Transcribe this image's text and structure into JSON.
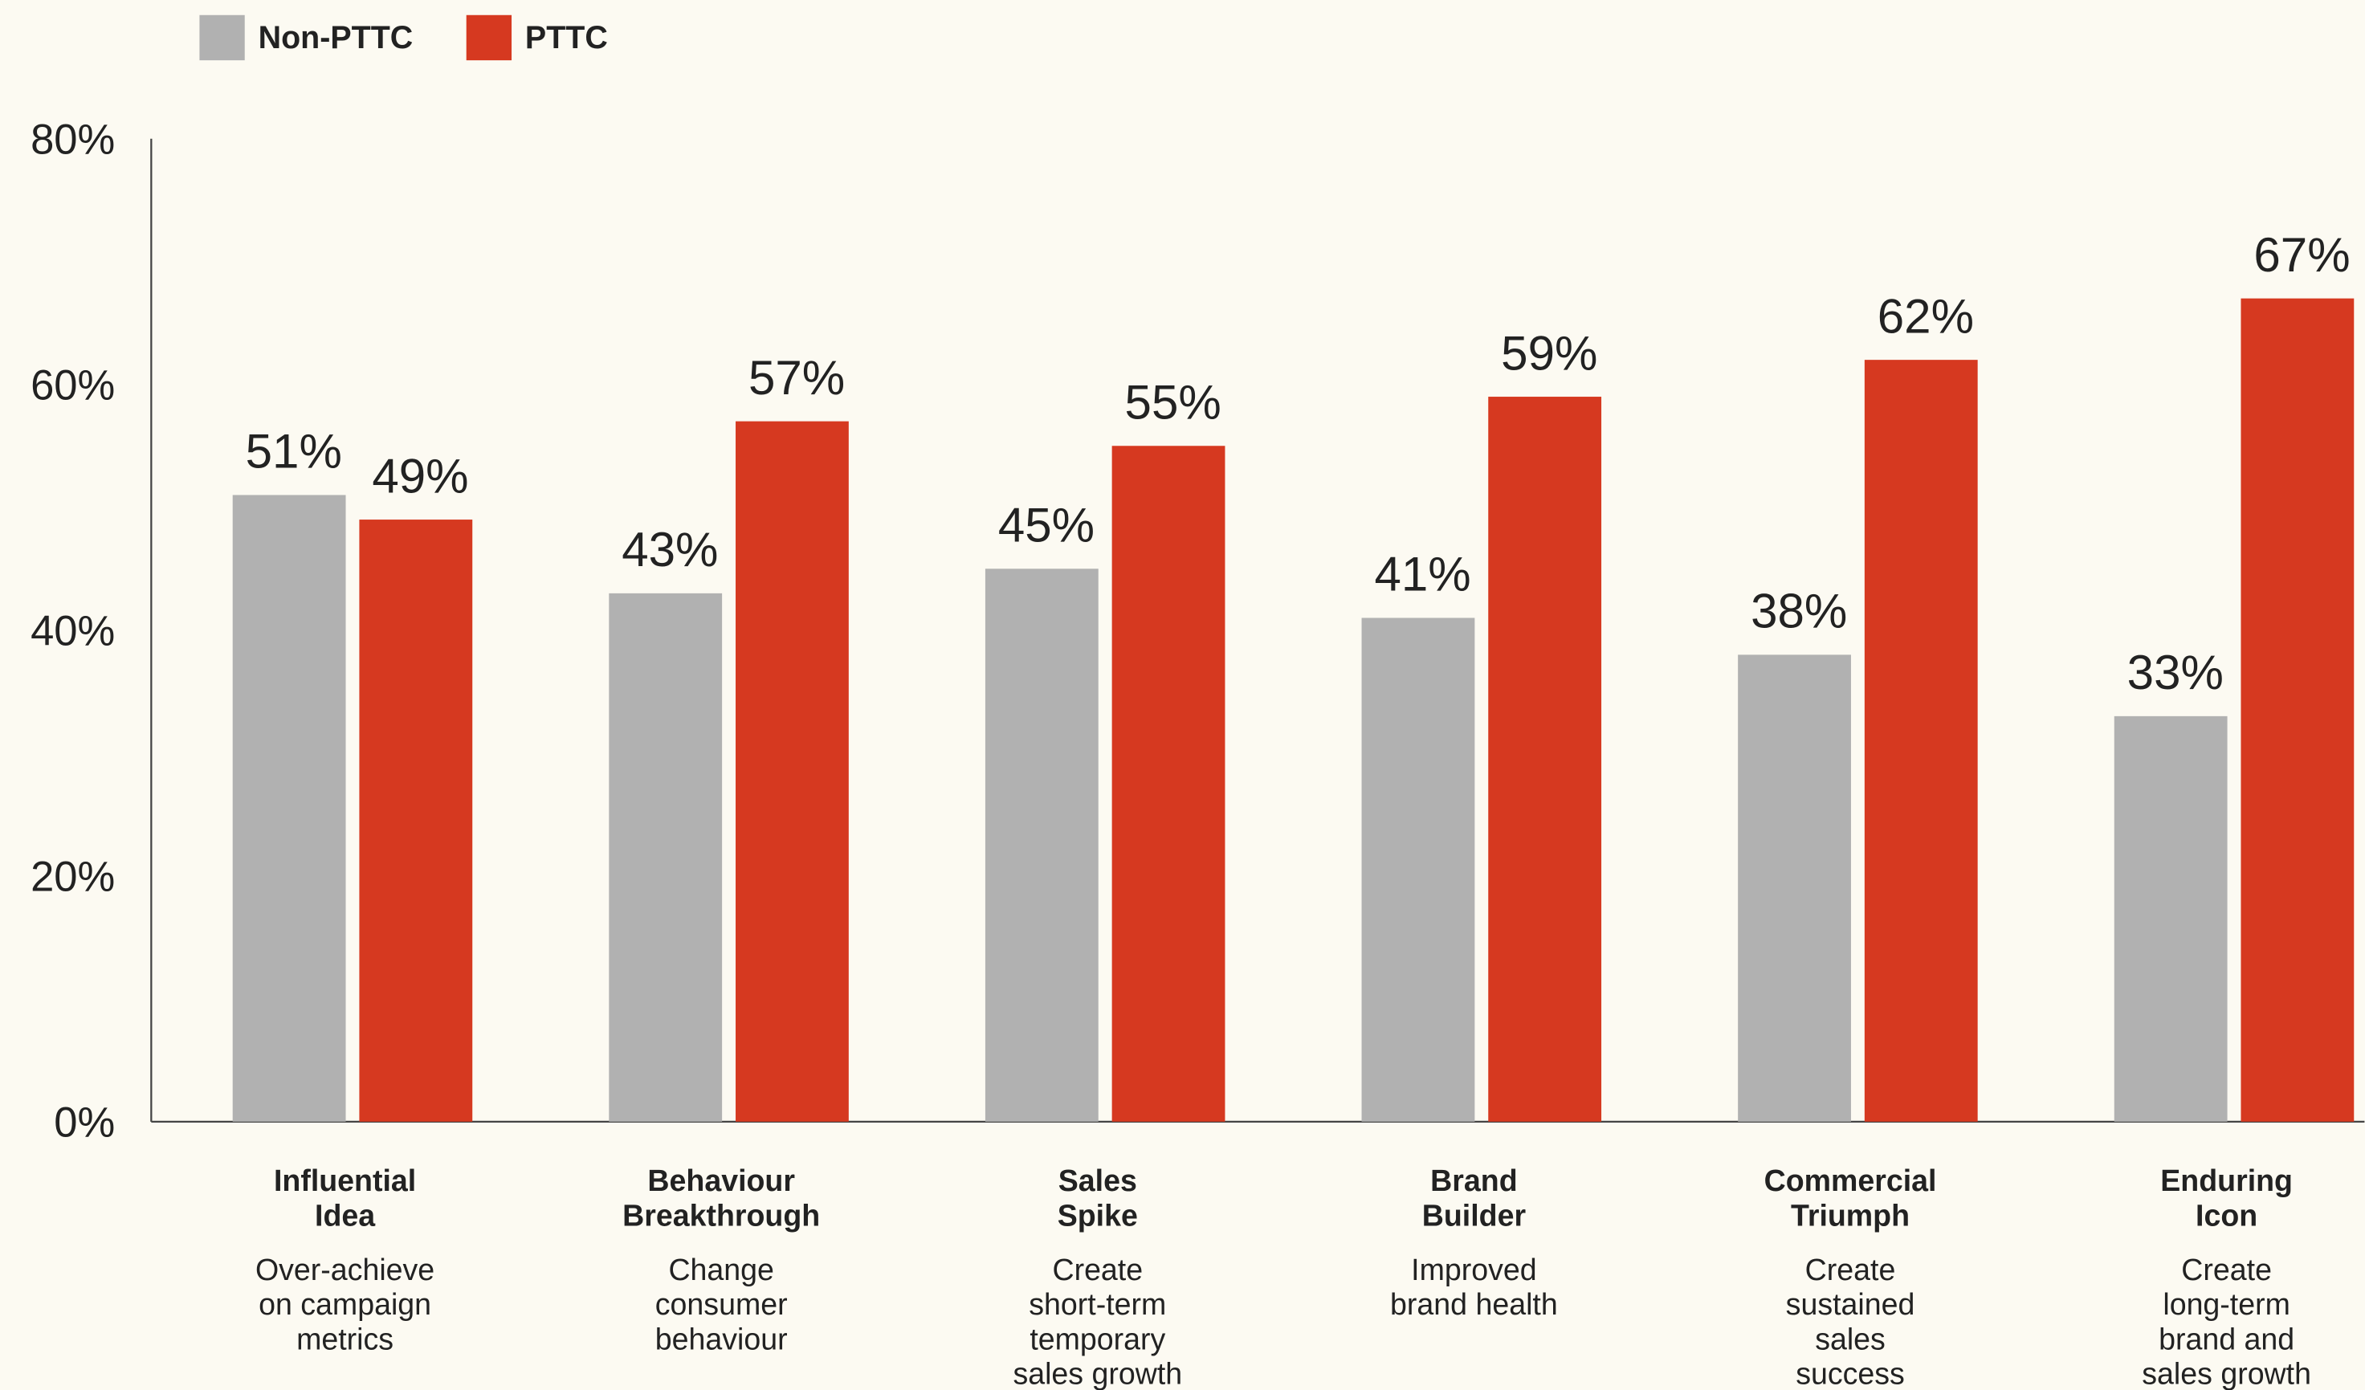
{
  "chart_data": {
    "type": "bar",
    "categories": [
      [
        "Influential",
        "Idea"
      ],
      [
        "Behaviour",
        "Breakthrough"
      ],
      [
        "Sales",
        "Spike"
      ],
      [
        "Brand",
        "Builder"
      ],
      [
        "Commercial",
        "Triumph"
      ],
      [
        "Enduring",
        "Icon"
      ]
    ],
    "descriptions": [
      [
        "Over-achieve",
        "on campaign",
        "metrics"
      ],
      [
        "Change",
        "consumer",
        "behaviour"
      ],
      [
        "Create",
        "short-term",
        "temporary",
        "sales growth"
      ],
      [
        "Improved",
        "brand health"
      ],
      [
        "Create",
        "sustained",
        "sales",
        "success"
      ],
      [
        "Create",
        "long-term",
        "brand and",
        "sales growth"
      ]
    ],
    "series": [
      {
        "name": "Non-PTTC",
        "color": "#b1b1b1",
        "values": [
          51,
          43,
          45,
          41,
          38,
          33
        ],
        "value_labels": [
          "51%",
          "43%",
          "45%",
          "41%",
          "38%",
          "33%"
        ]
      },
      {
        "name": "PTTC",
        "color": "#d63920",
        "values": [
          49,
          57,
          55,
          59,
          62,
          67
        ],
        "value_labels": [
          "49%",
          "57%",
          "55%",
          "59%",
          "62%",
          "67%"
        ]
      }
    ],
    "ylim": [
      0,
      80
    ],
    "yticks": [
      {
        "value": 0,
        "label": "0%"
      },
      {
        "value": 20,
        "label": "20%"
      },
      {
        "value": 40,
        "label": "40%"
      },
      {
        "value": 60,
        "label": "60%"
      },
      {
        "value": 80,
        "label": "80%"
      }
    ],
    "legend": "top-left",
    "grid": false
  }
}
